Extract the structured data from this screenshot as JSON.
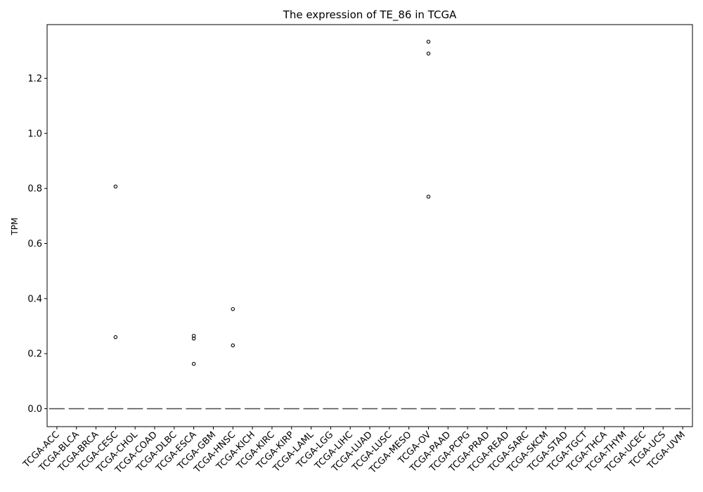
{
  "chart_data": {
    "type": "box",
    "title": "The expression of TE_86 in TCGA",
    "xlabel": "",
    "ylabel": "TPM",
    "ylim": [
      -0.065,
      1.395
    ],
    "yticks": [
      0.0,
      0.2,
      0.4,
      0.6,
      0.8,
      1.0,
      1.2
    ],
    "ytick_labels": [
      "0.0",
      "0.2",
      "0.4",
      "0.6",
      "0.8",
      "1.0",
      "1.2"
    ],
    "categories": [
      "TCGA-ACC",
      "TCGA-BLCA",
      "TCGA-BRCA",
      "TCGA-CESC",
      "TCGA-CHOL",
      "TCGA-COAD",
      "TCGA-DLBC",
      "TCGA-ESCA",
      "TCGA-GBM",
      "TCGA-HNSC",
      "TCGA-KICH",
      "TCGA-KIRC",
      "TCGA-KIRP",
      "TCGA-LAML",
      "TCGA-LGG",
      "TCGA-LIHC",
      "TCGA-LUAD",
      "TCGA-LUSC",
      "TCGA-MESO",
      "TCGA-OV",
      "TCGA-PAAD",
      "TCGA-PCPG",
      "TCGA-PRAD",
      "TCGA-READ",
      "TCGA-SARC",
      "TCGA-SKCM",
      "TCGA-STAD",
      "TCGA-TGCT",
      "TCGA-THCA",
      "TCGA-THYM",
      "TCGA-UCEC",
      "TCGA-UCS",
      "TCGA-UVM"
    ],
    "medians": [
      0,
      0,
      0,
      0,
      0,
      0,
      0,
      0,
      0,
      0,
      0,
      0,
      0,
      0,
      0,
      0,
      0,
      0,
      0,
      0,
      0,
      0,
      0,
      0,
      0,
      0,
      0,
      0,
      0,
      0,
      0,
      0,
      0
    ],
    "outliers": [
      {
        "category": "TCGA-CESC",
        "values": [
          0.807,
          0.26
        ]
      },
      {
        "category": "TCGA-ESCA",
        "values": [
          0.265,
          0.255,
          0.163
        ]
      },
      {
        "category": "TCGA-HNSC",
        "values": [
          0.362,
          0.23
        ]
      },
      {
        "category": "TCGA-OV",
        "values": [
          1.333,
          1.29,
          0.77
        ]
      }
    ],
    "grid": false,
    "colors": {
      "box": "#4c4c4c",
      "outlier": "#000000",
      "axis": "#000000"
    }
  }
}
